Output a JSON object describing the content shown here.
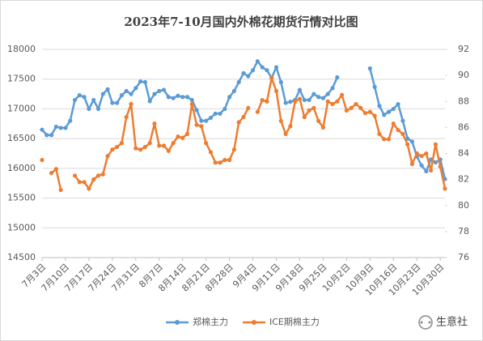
{
  "chart_data": {
    "type": "line",
    "title": "2023年7-10月国内外棉花期货行情对比图",
    "annotation": "生意社",
    "categories": [
      "7月3日",
      null,
      null,
      null,
      null,
      "7月10日",
      null,
      null,
      null,
      null,
      "7月17日",
      null,
      null,
      null,
      null,
      "7月24日",
      null,
      null,
      null,
      null,
      "7月31日",
      null,
      null,
      null,
      null,
      "8月7日",
      null,
      null,
      null,
      null,
      "8月14日",
      null,
      null,
      null,
      null,
      "8月21日",
      null,
      null,
      null,
      null,
      "8月28日",
      null,
      null,
      null,
      null,
      "9月4日",
      null,
      null,
      null,
      null,
      "9月11日",
      null,
      null,
      null,
      null,
      "9月18日",
      null,
      null,
      null,
      null,
      "9月25日",
      null,
      null,
      null,
      null,
      "10月2日",
      null,
      null,
      null,
      null,
      "10月9日",
      null,
      null,
      null,
      null,
      "10月16日",
      null,
      null,
      null,
      null,
      "10月23日",
      null,
      null,
      null,
      null,
      "10月30日",
      null
    ],
    "series": [
      {
        "name": "郑棉主力",
        "color": "#5b9bd5",
        "axis": "y",
        "values": [
          16650,
          16560,
          16560,
          16700,
          16680,
          16680,
          16800,
          17150,
          17230,
          17200,
          17000,
          17150,
          17000,
          17250,
          17330,
          17100,
          17100,
          17230,
          17300,
          17250,
          17350,
          17460,
          17450,
          17130,
          17250,
          17300,
          17320,
          17200,
          17180,
          17220,
          17200,
          17200,
          17150,
          16980,
          16800,
          16800,
          16850,
          16920,
          16920,
          17000,
          17200,
          17300,
          17450,
          17600,
          17550,
          17650,
          17800,
          17700,
          17650,
          17520,
          17700,
          17450,
          17100,
          17120,
          17150,
          17320,
          17150,
          17150,
          17250,
          17200,
          17180,
          17250,
          17350,
          17530,
          null,
          null,
          null,
          null,
          null,
          null,
          17680,
          17370,
          17050,
          16900,
          16950,
          17000,
          17080,
          16800,
          16500,
          16450,
          16200,
          16050,
          15950,
          16150,
          16100,
          16150,
          15820
        ]
      },
      {
        "name": "ICE期棉主力",
        "color": "#ed7d31",
        "axis": "y2",
        "values": [
          83.5,
          null,
          82.5,
          82.8,
          81.2,
          null,
          null,
          82.3,
          81.8,
          81.8,
          81.3,
          82,
          82.3,
          82.4,
          83.8,
          84.3,
          84.5,
          84.8,
          86.8,
          87.8,
          84.4,
          84.3,
          84.5,
          84.8,
          86.3,
          84.6,
          84.6,
          84.2,
          84.8,
          85.3,
          85.2,
          85.5,
          87.8,
          86.2,
          86.1,
          84.8,
          84.1,
          83.3,
          83.3,
          83.5,
          83.5,
          84.3,
          86.4,
          86.8,
          87.5,
          null,
          87.2,
          88.1,
          88,
          89.8,
          88.8,
          86.5,
          85.5,
          86.1,
          88,
          88.2,
          86.8,
          87.3,
          87.5,
          86.5,
          86,
          88,
          87.8,
          88,
          88.5,
          87.3,
          87.5,
          87.8,
          87.5,
          87.1,
          87.2,
          86.9,
          85.5,
          85.1,
          85.1,
          86.3,
          85.8,
          85.5,
          84.7,
          83.2,
          84,
          83.8,
          84,
          82.7,
          84.7,
          83,
          81.3
        ]
      }
    ],
    "ylim": [
      14500,
      18000
    ],
    "yticks": [
      14500,
      15000,
      15500,
      16000,
      16500,
      17000,
      17500,
      18000
    ],
    "y2lim": [
      76,
      92
    ],
    "y2ticks": [
      76,
      78,
      80,
      82,
      84,
      86,
      88,
      90,
      92
    ],
    "grid": true,
    "legend": "bottom"
  }
}
